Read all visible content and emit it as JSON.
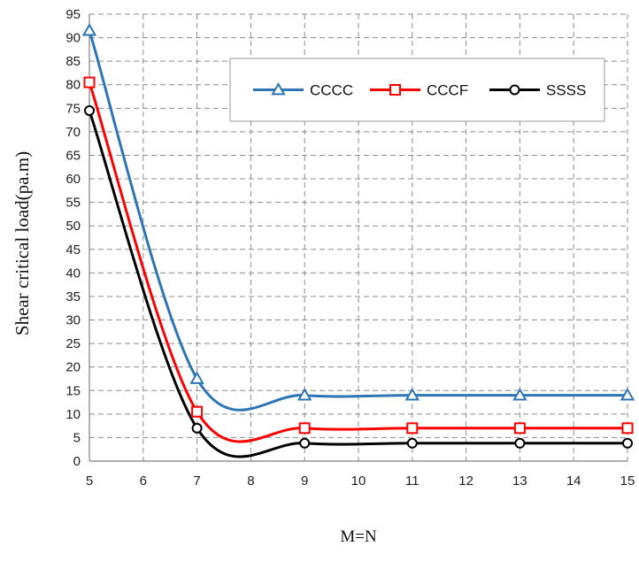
{
  "chart_data": {
    "type": "line",
    "title": "",
    "xlabel": "M=N",
    "ylabel": "Shear critical load(pa.m)",
    "x_ticks": [
      5,
      6,
      7,
      8,
      9,
      10,
      11,
      12,
      13,
      14,
      15
    ],
    "xlim": [
      5,
      15
    ],
    "ylim": [
      0,
      95
    ],
    "y_tick_step": 5,
    "grid": "dashed",
    "legend_position": "top-right",
    "x": [
      5,
      7,
      9,
      11,
      13,
      15
    ],
    "series": [
      {
        "name": "CCCC",
        "color": "#2E75B6",
        "marker": "triangle",
        "values": [
          91.5,
          17.5,
          14.0,
          14.0,
          14.0,
          14.0
        ]
      },
      {
        "name": "CCCF",
        "color": "#FF0000",
        "marker": "square",
        "values": [
          80.5,
          10.5,
          7.0,
          7.0,
          7.0,
          7.0
        ]
      },
      {
        "name": "SSSS",
        "color": "#000000",
        "marker": "circle",
        "values": [
          74.5,
          7.0,
          3.8,
          3.8,
          3.8,
          3.8
        ]
      }
    ]
  }
}
